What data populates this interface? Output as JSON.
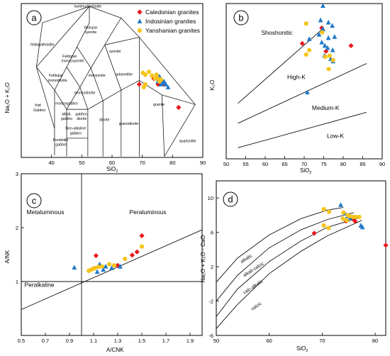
{
  "colors": {
    "caledonian": "#e8161b",
    "indosinian": "#1f78c8",
    "yanshanian": "#f5c31b"
  },
  "legend": [
    {
      "key": "caledonian",
      "label": "Caledonian granites",
      "shape": "diamond"
    },
    {
      "key": "indosinian",
      "label": "Indosinian granites",
      "shape": "triangle"
    },
    {
      "key": "yanshanian",
      "label": "Yanshanian granites",
      "shape": "circle"
    }
  ],
  "chart_data": [
    {
      "panel": "a",
      "type": "scatter",
      "xlabel": "SiO",
      "xlabel_sub": "2",
      "ylabel": "Na₂O + K₂O",
      "xlim": [
        30,
        90
      ],
      "ylim": [
        0,
        16
      ],
      "x_ticks": [
        "40",
        "50",
        "60",
        "70",
        "80",
        "90"
      ],
      "field_labels": [
        {
          "text": "tavite/urtite/italite",
          "x": 52,
          "y": 15.6
        },
        {
          "text": "feldspar",
          "x": 53,
          "y": 13.4
        },
        {
          "text": "syenite",
          "x": 53,
          "y": 12.9
        },
        {
          "text": "feldspathoidite",
          "x": 37,
          "y": 11.6
        },
        {
          "text": "Feldspar",
          "x": 46,
          "y": 10.4
        },
        {
          "text": "monzosyenite",
          "x": 47,
          "y": 9.9
        },
        {
          "text": "syenite",
          "x": 61,
          "y": 10.9
        },
        {
          "text": "Feldspar",
          "x": 41.5,
          "y": 8.4
        },
        {
          "text": "monodiorite",
          "x": 42,
          "y": 7.9
        },
        {
          "text": "monzonite",
          "x": 55,
          "y": 8.4
        },
        {
          "text": "adamellite",
          "x": 64,
          "y": 8.5
        },
        {
          "text": "foid",
          "x": 35.5,
          "y": 5.3
        },
        {
          "text": "Gabbro",
          "x": 36,
          "y": 4.8
        },
        {
          "text": "monzogabbro",
          "x": 45,
          "y": 5.5
        },
        {
          "text": "monzodiorite",
          "x": 51,
          "y": 6.6
        },
        {
          "text": "alkali-",
          "x": 45,
          "y": 4.4
        },
        {
          "text": "gabbro",
          "x": 45,
          "y": 3.9
        },
        {
          "text": "gabbro-",
          "x": 50,
          "y": 4.4
        },
        {
          "text": "diorite",
          "x": 50,
          "y": 3.9
        },
        {
          "text": "diorite",
          "x": 57.5,
          "y": 3.8
        },
        {
          "text": "granite",
          "x": 75.5,
          "y": 5.4
        },
        {
          "text": "granodiorite",
          "x": 65.5,
          "y": 3.4
        },
        {
          "text": "Non-alkaline",
          "x": 48,
          "y": 2.9
        },
        {
          "text": "gabbro",
          "x": 48,
          "y": 2.4
        },
        {
          "text": "Peridotite",
          "x": 43,
          "y": 1.7
        },
        {
          "text": "gabbro",
          "x": 43.2,
          "y": 1.2
        },
        {
          "text": "quartzolite",
          "x": 85,
          "y": 1.6
        }
      ],
      "series": [
        {
          "key": "caledonian",
          "points": [
            [
              69,
              7.6
            ],
            [
              73.8,
              8.2
            ],
            [
              75.2,
              7.6
            ],
            [
              76.8,
              7.8
            ],
            [
              77.2,
              7.6
            ],
            [
              82,
              5.2
            ]
          ]
        },
        {
          "key": "indosinian",
          "points": [
            [
              74.8,
              8.2
            ],
            [
              75.2,
              7.9
            ],
            [
              75.7,
              8.4
            ],
            [
              76.2,
              7.6
            ],
            [
              76.8,
              7.8
            ],
            [
              77.2,
              7.9
            ],
            [
              77.8,
              7.6
            ],
            [
              78.5,
              7.3
            ]
          ]
        },
        {
          "key": "yanshanian",
          "points": [
            [
              70.2,
              8.8
            ],
            [
              71,
              8.6
            ],
            [
              72.2,
              8.9
            ],
            [
              73.2,
              8.5
            ],
            [
              74.2,
              8.2
            ],
            [
              75.2,
              8.2
            ],
            [
              76.2,
              8.1
            ],
            [
              71,
              7.6
            ],
            [
              70.5,
              7.3
            ],
            [
              74.7,
              8.6
            ],
            [
              75.7,
              7.9
            ]
          ]
        }
      ]
    },
    {
      "panel": "b",
      "type": "scatter",
      "xlabel": "SiO",
      "xlabel_sub": "2",
      "ylabel": "K₂O",
      "xlim": [
        50,
        90
      ],
      "ylim": [
        0,
        7
      ],
      "x_ticks": [
        "50",
        "55",
        "60",
        "65",
        "70",
        "75",
        "80",
        "85",
        "90"
      ],
      "region_labels": [
        {
          "text": "Shoshonitic",
          "x": 63,
          "y": 5.6
        },
        {
          "text": "High-K",
          "x": 68,
          "y": 3.6
        },
        {
          "text": "Medium-K",
          "x": 75.5,
          "y": 2.2
        },
        {
          "text": "Low-K",
          "x": 78,
          "y": 0.95
        }
      ],
      "boundaries": [
        [
          [
            53,
            2.5
          ],
          [
            75,
            5.9
          ]
        ],
        [
          [
            53,
            1.6
          ],
          [
            86,
            4.3
          ]
        ],
        [
          [
            53,
            0.5
          ],
          [
            86,
            2.1
          ]
        ]
      ],
      "series": [
        {
          "key": "caledonian",
          "points": [
            [
              69.5,
              5.2
            ],
            [
              74.5,
              5.9
            ],
            [
              82,
              5.1
            ],
            [
              75.6,
              4.85
            ]
          ]
        },
        {
          "key": "indosinian",
          "points": [
            [
              74.8,
              6.9
            ],
            [
              74.2,
              6.25
            ],
            [
              76.2,
              6.15
            ],
            [
              74.8,
              5.85
            ],
            [
              77.2,
              6
            ],
            [
              73.8,
              5.6
            ],
            [
              76.2,
              5.45
            ],
            [
              75.3,
              5.1
            ],
            [
              74.5,
              5.25
            ],
            [
              77.8,
              5.5
            ],
            [
              75.2,
              4.65
            ],
            [
              77.3,
              4.9
            ],
            [
              77.4,
              4.4
            ],
            [
              71.3,
              5.4
            ],
            [
              70.8,
              3
            ],
            [
              76.8,
              4.5
            ],
            [
              76,
              5
            ]
          ]
        },
        {
          "key": "yanshanian",
          "points": [
            [
              70.5,
              6.1
            ],
            [
              71.3,
              4.9
            ],
            [
              76.5,
              4.65
            ],
            [
              77.4,
              4.45
            ],
            [
              76.3,
              4.05
            ],
            [
              70.5,
              4.7
            ],
            [
              75.4,
              4.6
            ],
            [
              74.6,
              5.7
            ]
          ]
        }
      ]
    },
    {
      "panel": "c",
      "type": "scatter",
      "xlabel": "A/CNK",
      "ylabel": "A/NK",
      "xlim": [
        0.5,
        2
      ],
      "ylim": [
        0,
        3
      ],
      "x_ticks": [
        "0.5",
        "0.7",
        "0.9",
        "1.1",
        "1.3",
        "1.5",
        "1.7",
        "1.9"
      ],
      "y_ticks": [
        "1",
        "2",
        "3"
      ],
      "region_labels": [
        {
          "text": "Metaluminous",
          "x": 0.7,
          "y": 2.25
        },
        {
          "text": "Peraluminous",
          "x": 1.55,
          "y": 2.25
        },
        {
          "text": "Peralkaline",
          "x": 0.65,
          "y": 0.9
        }
      ],
      "series": [
        {
          "key": "caledonian",
          "points": [
            [
              1.5,
              1.85
            ],
            [
              1.12,
              1.48
            ],
            [
              1.46,
              1.55
            ],
            [
              1.42,
              1.49
            ],
            [
              1.3,
              1.3
            ]
          ]
        },
        {
          "key": "indosinian",
          "points": [
            [
              0.94,
              1.26
            ],
            [
              1.13,
              1.18
            ],
            [
              1.18,
              1.22
            ],
            [
              1.2,
              1.28
            ],
            [
              1.25,
              1.25
            ],
            [
              1.15,
              1.32
            ],
            [
              1.32,
              1.28
            ]
          ]
        },
        {
          "key": "yanshanian",
          "points": [
            [
              1.06,
              1.2
            ],
            [
              1.08,
              1.22
            ],
            [
              1.1,
              1.24
            ],
            [
              1.14,
              1.27
            ],
            [
              1.17,
              1.28
            ],
            [
              1.23,
              1.32
            ],
            [
              1.36,
              1.42
            ],
            [
              1.5,
              1.65
            ],
            [
              1.11,
              1.25
            ],
            [
              1.27,
              1.3
            ]
          ]
        }
      ]
    },
    {
      "panel": "d",
      "type": "scatter",
      "xlabel": "SiO",
      "xlabel_sub": "2",
      "ylabel": "Na₂O + K₂O - CaO",
      "xlim": [
        50,
        82
      ],
      "ylim": [
        -6,
        12
      ],
      "x_ticks": [
        "50",
        "60",
        "70",
        "80"
      ],
      "y_ticks": [
        "-6",
        "-2",
        "2",
        "6",
        "10"
      ],
      "series_labels": [
        {
          "text": "alkalic",
          "x": 54.8,
          "y": 2.4
        },
        {
          "text": "alkali-calcic",
          "x": 55.3,
          "y": 0.8
        },
        {
          "text": "calc-alkalic",
          "x": 55.3,
          "y": -1.2
        },
        {
          "text": "calcic",
          "x": 56.8,
          "y": -3.1
        }
      ],
      "boundaries": [
        [
          [
            50,
            0.2
          ],
          [
            54,
            3.0
          ],
          [
            60,
            5.7
          ],
          [
            66,
            7.6
          ],
          [
            71,
            8.6
          ],
          [
            74,
            8.9
          ]
        ],
        [
          [
            50,
            -2
          ],
          [
            54,
            1.0
          ],
          [
            60,
            4.2
          ],
          [
            66,
            6.3
          ],
          [
            71,
            7.5
          ],
          [
            76,
            8.3
          ]
        ],
        [
          [
            50,
            -3.8
          ],
          [
            54,
            -0.6
          ],
          [
            60,
            2.6
          ],
          [
            66,
            5.0
          ],
          [
            71,
            6.6
          ],
          [
            77,
            7.7
          ]
        ],
        [
          [
            50,
            -5.2
          ],
          [
            54,
            -2.4
          ],
          [
            60,
            1.2
          ],
          [
            66,
            3.8
          ],
          [
            71,
            5.6
          ],
          [
            77.5,
            7.4
          ]
        ]
      ],
      "series": [
        {
          "key": "caledonian",
          "points": [
            [
              68.5,
              5.9
            ],
            [
              74.5,
              7.3
            ],
            [
              75.8,
              7.6
            ],
            [
              82,
              4.5
            ],
            [
              76.2,
              7.3
            ]
          ]
        },
        {
          "key": "indosinian",
          "points": [
            [
              73.5,
              9.2
            ],
            [
              74.3,
              8.2
            ],
            [
              75,
              8.0
            ],
            [
              75.3,
              7.7
            ],
            [
              77.3,
              6.8
            ],
            [
              77.6,
              6.6
            ],
            [
              74.8,
              7.9
            ]
          ]
        },
        {
          "key": "yanshanian",
          "points": [
            [
              70.3,
              8.7
            ],
            [
              71.3,
              8.4
            ],
            [
              70.3,
              6.8
            ],
            [
              71.2,
              6.5
            ],
            [
              74,
              8.3
            ],
            [
              74.8,
              8.0
            ],
            [
              75.2,
              7.9
            ],
            [
              75.8,
              7.8
            ],
            [
              76.3,
              7.8
            ],
            [
              77,
              7.8
            ],
            [
              74.6,
              7.4
            ],
            [
              73.9,
              7.6
            ]
          ]
        }
      ]
    }
  ]
}
